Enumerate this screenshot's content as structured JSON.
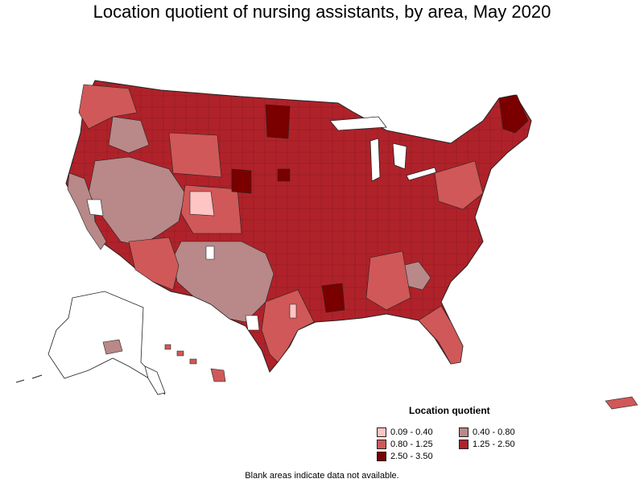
{
  "title": "Location quotient of nursing assistants, by area, May 2020",
  "legend": {
    "title": "Location quotient",
    "items": [
      {
        "label": "0.09 - 0.40",
        "color": "#ffc4c4"
      },
      {
        "label": "0.40 - 0.80",
        "color": "#b98888"
      },
      {
        "label": "0.80 - 1.25",
        "color": "#d05858"
      },
      {
        "label": "1.25 - 2.50",
        "color": "#b0222a"
      },
      {
        "label": "2.50 - 3.50",
        "color": "#7a0000"
      }
    ]
  },
  "note": "Blank areas indicate data not available.",
  "colors": {
    "very_low": "#ffc4c4",
    "low": "#b98888",
    "mid": "#d05858",
    "high": "#b0222a",
    "very_high": "#7a0000",
    "border": "#222222"
  }
}
